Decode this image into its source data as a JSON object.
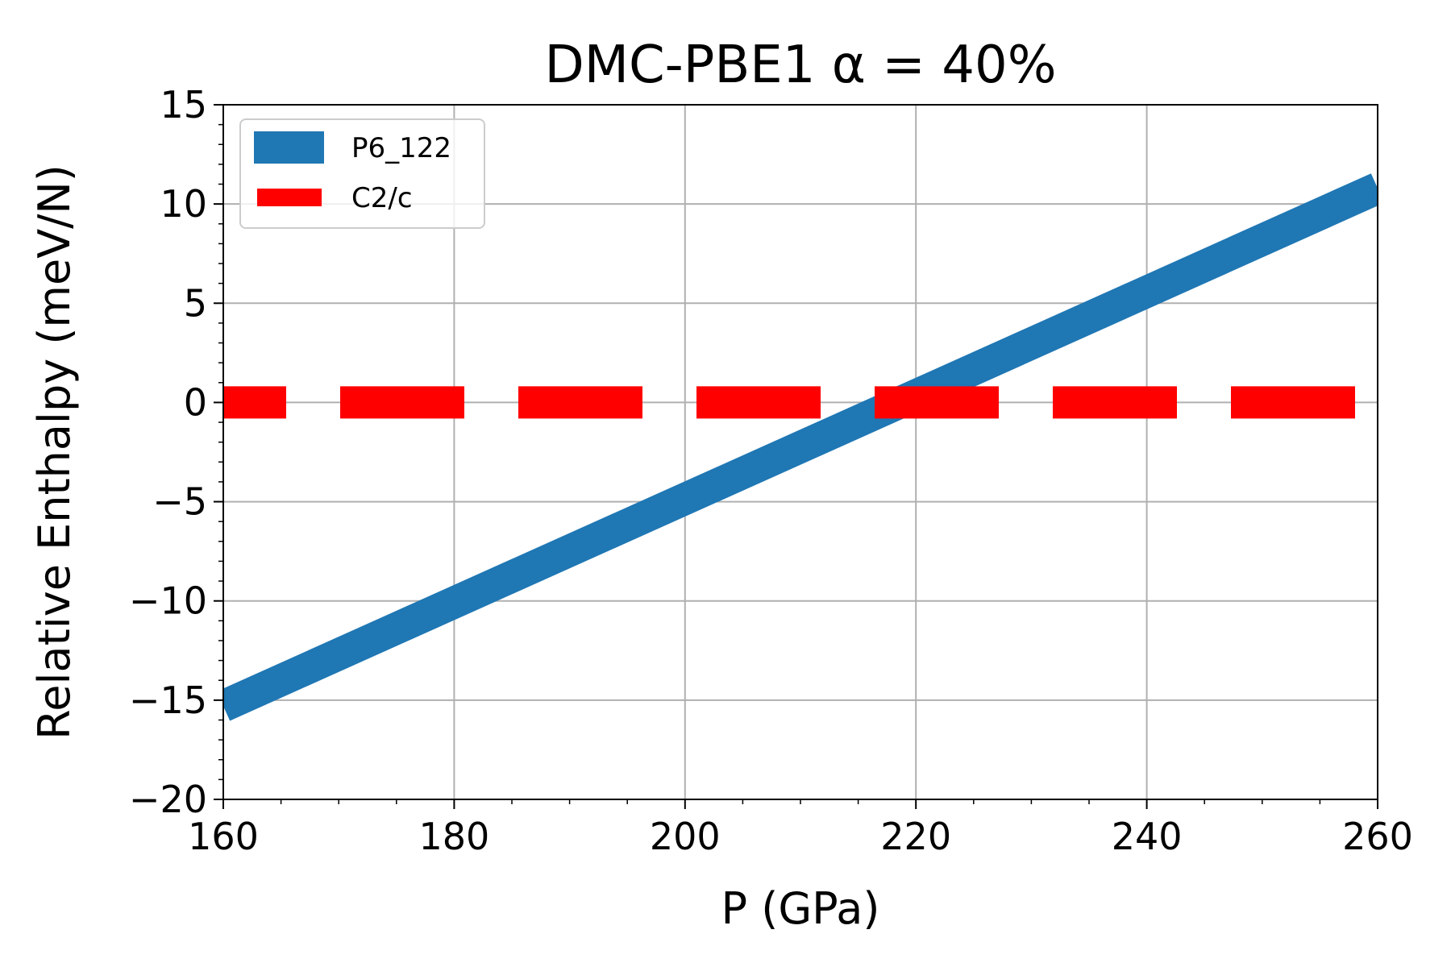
{
  "chart_data": {
    "type": "line",
    "title": "DMC-PBE1 α = 40%",
    "xlabel": "P (GPa)",
    "ylabel": "Relative Enthalpy (meV/N)",
    "xlim": [
      160,
      260
    ],
    "ylim": [
      -20,
      15
    ],
    "xticks": [
      160,
      180,
      200,
      220,
      240,
      260
    ],
    "yticks": [
      -20,
      -15,
      -10,
      -5,
      0,
      5,
      10,
      15
    ],
    "xtick_labels": [
      "160",
      "180",
      "200",
      "220",
      "240",
      "260"
    ],
    "ytick_labels": [
      "−20",
      "−15",
      "−10",
      "−5",
      "0",
      "5",
      "10",
      "15"
    ],
    "grid": true,
    "legend_position": "upper left",
    "series": [
      {
        "name": "P6_122",
        "x": [
          160,
          260
        ],
        "y": [
          -15.3,
          10.8
        ],
        "color": "#1f77b4",
        "style": "solid"
      },
      {
        "name": "C2/c",
        "x": [
          160,
          260
        ],
        "y": [
          0,
          0
        ],
        "color": "#ff0000",
        "style": "dashed"
      }
    ]
  }
}
